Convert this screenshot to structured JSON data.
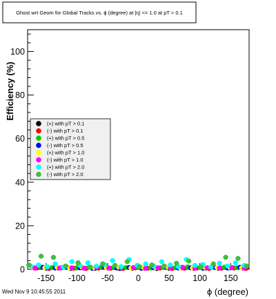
{
  "chart_data": {
    "type": "scatter",
    "title": "Ghost wrt Geom for Global Tracks vs. ϕ (degree) at |η| <= 1.0 at pT > 0.1",
    "xlabel": "ϕ (degree)",
    "ylabel": "Efficiency (%)",
    "xlim": [
      -180,
      180
    ],
    "ylim": [
      0,
      110
    ],
    "xticks": [
      -150,
      -100,
      -50,
      0,
      50,
      100,
      150
    ],
    "yticks": [
      0,
      20,
      40,
      60,
      80,
      100
    ],
    "grid": false,
    "legend_position": "center-left",
    "series": [
      {
        "name": "(+) with pT > 0.1",
        "color": "#000000",
        "x": [
          -170,
          -150,
          -130,
          -110,
          -90,
          -70,
          -50,
          -30,
          -10,
          10,
          30,
          50,
          70,
          90,
          110,
          130,
          150,
          170
        ],
        "values": [
          0.8,
          0.5,
          0.6,
          0.4,
          0.7,
          0.5,
          0.6,
          0.4,
          0.5,
          0.6,
          0.4,
          0.5,
          0.7,
          0.4,
          0.6,
          0.5,
          0.7,
          0.6
        ]
      },
      {
        "name": "(-) with pT > 0.1",
        "color": "#ff0000",
        "x": [
          -165,
          -145,
          -125,
          -105,
          -85,
          -65,
          -45,
          -25,
          -5,
          15,
          35,
          55,
          75,
          95,
          115,
          135,
          155,
          175
        ],
        "values": [
          0.6,
          0.4,
          0.7,
          0.5,
          0.4,
          0.6,
          0.5,
          0.4,
          0.7,
          0.5,
          0.6,
          0.4,
          0.5,
          0.6,
          0.4,
          0.5,
          0.6,
          0.4
        ]
      },
      {
        "name": "(+) with pT > 0.5",
        "color": "#00cc00",
        "x": [
          -160,
          -140,
          -120,
          -100,
          -80,
          -60,
          -40,
          -20,
          0,
          20,
          40,
          60,
          80,
          100,
          120,
          140,
          160
        ],
        "values": [
          1.2,
          0.8,
          1.0,
          0.6,
          0.9,
          1.1,
          0.7,
          0.8,
          1.0,
          0.6,
          0.9,
          0.7,
          1.1,
          0.8,
          0.9,
          1.0,
          0.7
        ]
      },
      {
        "name": "(-) with pT > 0.5",
        "color": "#0000ff",
        "x": [
          -155,
          -135,
          -115,
          -95,
          -75,
          -55,
          -35,
          -15,
          5,
          25,
          45,
          65,
          85,
          105,
          125,
          145,
          165
        ],
        "values": [
          0.9,
          0.6,
          0.8,
          0.7,
          0.5,
          0.9,
          0.6,
          0.8,
          0.5,
          0.7,
          0.9,
          0.6,
          0.7,
          0.5,
          0.8,
          0.6,
          0.9
        ]
      },
      {
        "name": "(+) with pT > 1.0",
        "color": "#ffff00",
        "x": [
          -172,
          -152,
          -132,
          -112,
          -92,
          -72,
          -52,
          -32,
          -12,
          8,
          28,
          48,
          68,
          88,
          108,
          128,
          148,
          168
        ],
        "values": [
          1.0,
          0.7,
          0.9,
          0.6,
          1.1,
          0.8,
          0.7,
          1.0,
          0.6,
          0.9,
          0.8,
          1.0,
          0.7,
          0.6,
          0.9,
          0.8,
          1.0,
          0.7
        ]
      },
      {
        "name": "(-) with pT > 1.0",
        "color": "#ff00ff",
        "x": [
          -168,
          -148,
          -128,
          -108,
          -88,
          -68,
          -48,
          -28,
          -8,
          12,
          32,
          52,
          72,
          92,
          112,
          132,
          152,
          172
        ],
        "values": [
          0.5,
          0.8,
          0.6,
          0.7,
          0.5,
          0.9,
          0.6,
          0.7,
          0.8,
          0.5,
          0.7,
          0.6,
          0.9,
          0.5,
          0.7,
          0.6,
          0.8,
          0.5
        ]
      },
      {
        "name": "(+) with pT > 2.0",
        "color": "#00ffff",
        "x": [
          -175,
          -162,
          -148,
          -135,
          -122,
          -108,
          -95,
          -82,
          -68,
          -55,
          -42,
          -28,
          -15,
          -2,
          12,
          25,
          38,
          52,
          65,
          78,
          92,
          105,
          118,
          132,
          145,
          158,
          172
        ],
        "values": [
          1.5,
          2.0,
          1.2,
          2.5,
          1.0,
          3.5,
          1.8,
          3.0,
          1.5,
          2.2,
          4.0,
          1.2,
          4.5,
          1.8,
          2.5,
          1.5,
          3.5,
          2.0,
          1.2,
          4.5,
          1.8,
          2.2,
          1.0,
          2.8,
          1.5,
          3.0,
          1.8
        ]
      },
      {
        "name": "(-) with pT > 2.0",
        "color": "#44bb44",
        "x": [
          -178,
          -158,
          -138,
          -118,
          -98,
          -78,
          -58,
          -38,
          -18,
          2,
          22,
          42,
          62,
          82,
          102,
          122,
          142,
          162,
          176
        ],
        "values": [
          2.0,
          6.0,
          5.5,
          1.5,
          3.0,
          1.0,
          2.5,
          1.8,
          3.5,
          1.2,
          2.0,
          1.5,
          2.8,
          3.8,
          1.0,
          2.5,
          5.5,
          5.0,
          1.5
        ]
      }
    ]
  },
  "footer": {
    "timestamp": "Wed Nov  9 10:45:55 2011"
  }
}
